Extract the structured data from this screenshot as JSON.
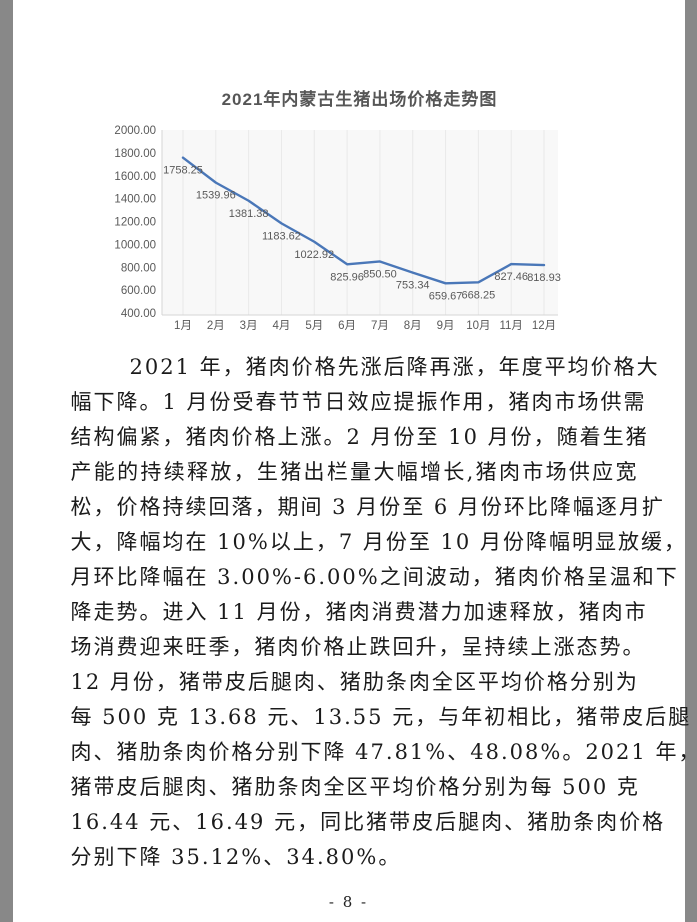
{
  "page": {
    "number_label": "- 8 -"
  },
  "chart_data": {
    "type": "line",
    "title": "2021年内蒙古生猪出场价格走势图",
    "categories": [
      "1月",
      "2月",
      "3月",
      "4月",
      "5月",
      "6月",
      "7月",
      "8月",
      "9月",
      "10月",
      "11月",
      "12月"
    ],
    "values": [
      1758.25,
      1539.96,
      1381.38,
      1183.62,
      1022.92,
      825.96,
      850.5,
      753.34,
      659.67,
      668.25,
      827.46,
      818.93
    ],
    "data_labels": [
      "1758.25",
      "1539.96",
      "1381.38",
      "1183.62",
      "1022.92",
      "825.96",
      "850.50",
      "753.34",
      "659.67",
      "668.25",
      "827.46",
      "818.93"
    ],
    "y_tick_labels": [
      "400.00",
      "600.00",
      "800.00",
      "1000.00",
      "1200.00",
      "1400.00",
      "1600.00",
      "1800.00",
      "2000.00"
    ],
    "xlabel": "",
    "ylabel": "",
    "ylim": [
      400,
      2000
    ],
    "y_step": 200,
    "grid": "vertical",
    "legend": "none",
    "line_color": "#4A77B8",
    "axis_label_color": "#595959",
    "grid_color": "#e9e9e9",
    "axis_line_color": "#d6d6d6",
    "plot_bg": "#f8f8f8"
  },
  "body": {
    "lines": [
      "2021 年，猪肉价格先涨后降再涨，年度平均价格大",
      "幅下降。1 月份受春节节日效应提振作用，猪肉市场供需",
      "结构偏紧，猪肉价格上涨。2 月份至 10 月份，随着生猪",
      "产能的持续释放，生猪出栏量大幅增长,猪肉市场供应宽",
      "松，价格持续回落，期间 3 月份至 6 月份环比降幅逐月扩",
      "大，降幅均在 10%以上，7 月份至 10 月份降幅明显放缓，",
      "月环比降幅在 3.00%-6.00%之间波动，猪肉价格呈温和下",
      "降走势。进入 11 月份，猪肉消费潜力加速释放，猪肉市",
      "场消费迎来旺季，猪肉价格止跌回升，呈持续上涨态势。",
      "12 月份，猪带皮后腿肉、猪肋条肉全区平均价格分别为",
      "每 500 克 13.68 元、13.55 元，与年初相比，猪带皮后腿",
      "肉、猪肋条肉价格分别下降 47.81%、48.08%。2021 年，",
      "猪带皮后腿肉、猪肋条肉全区平均价格分别为每 500 克",
      "16.44 元、16.49 元，同比猪带皮后腿肉、猪肋条肉价格",
      "分别下降 35.12%、34.80%。"
    ]
  }
}
